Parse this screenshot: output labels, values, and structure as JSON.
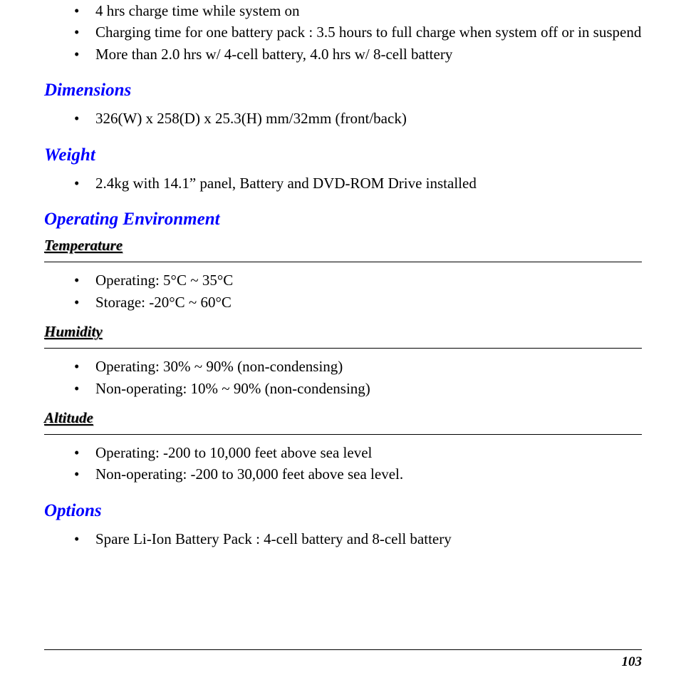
{
  "top_list": {
    "items": [
      "4 hrs charge time while system on",
      "Charging time for one battery pack : 3.5 hours to full charge when system off or in suspend",
      "More than 2.0 hrs w/ 4-cell battery, 4.0 hrs w/ 8-cell battery"
    ]
  },
  "dimensions": {
    "heading": "Dimensions",
    "items": [
      "326(W) x 258(D) x 25.3(H) mm/32mm (front/back)"
    ]
  },
  "weight": {
    "heading": "Weight",
    "items": [
      "2.4kg with 14.1” panel, Battery and DVD-ROM Drive installed"
    ]
  },
  "op_env": {
    "heading": "Operating Environment",
    "temperature": {
      "heading": "Temperature",
      "items": [
        "Operating: 5°C ~ 35°C",
        "Storage: -20°C ~ 60°C"
      ]
    },
    "humidity": {
      "heading": "Humidity",
      "items": [
        "Operating:  30% ~ 90% (non-condensing)",
        "Non-operating: 10% ~ 90% (non-condensing)"
      ]
    },
    "altitude": {
      "heading": "Altitude",
      "items": [
        "Operating:  -200 to 10,000 feet above sea level",
        "Non-operating: -200 to 30,000 feet above sea level."
      ]
    }
  },
  "options": {
    "heading": "Options",
    "items": [
      "Spare Li-Ion Battery Pack : 4-cell battery and 8-cell battery"
    ]
  },
  "page_number": "103",
  "colors": {
    "heading_blue": "#0000ff",
    "text_black": "#000000",
    "background": "#ffffff",
    "shadow": "#bdbdbd"
  }
}
